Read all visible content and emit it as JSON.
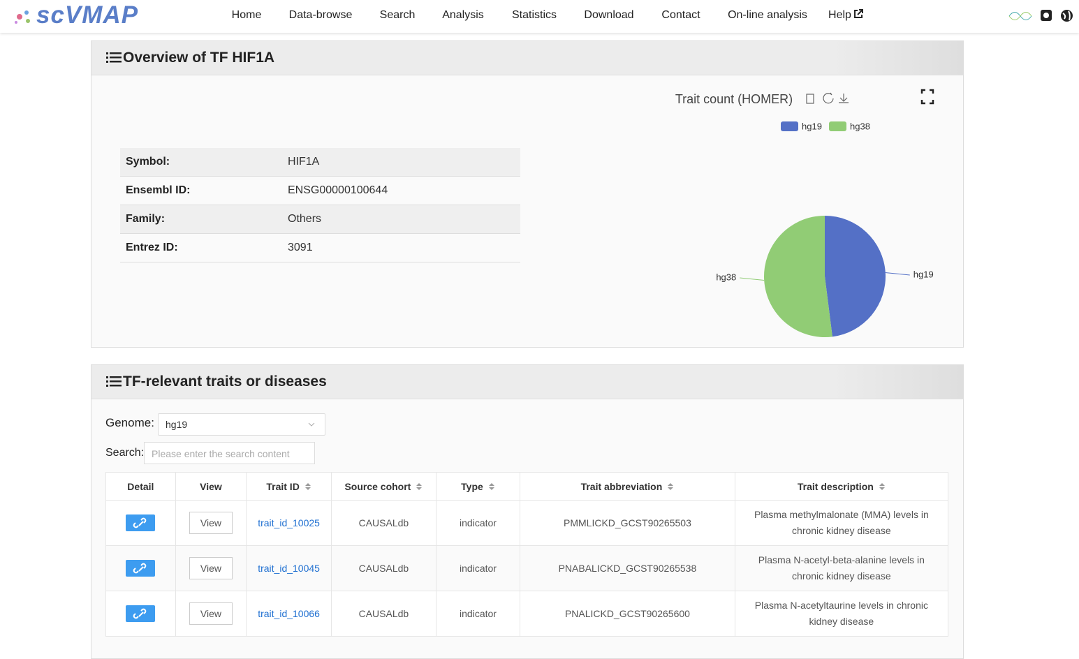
{
  "header": {
    "logo": "scVMAP",
    "nav": [
      "Home",
      "Data-browse",
      "Search",
      "Analysis",
      "Statistics",
      "Download",
      "Contact",
      "On-line analysis",
      "Help"
    ]
  },
  "overview": {
    "title": "Overview of TF HIF1A",
    "info": [
      [
        "Symbol:",
        "HIF1A"
      ],
      [
        "Ensembl ID:",
        "ENSG00000100644"
      ],
      [
        "Family:",
        "Others"
      ],
      [
        "Entrez ID:",
        "3091"
      ]
    ]
  },
  "chart_data": {
    "type": "pie",
    "title": "Trait count (HOMER)",
    "categories": [
      "hg19",
      "hg38"
    ],
    "values": [
      48,
      52
    ],
    "colors": [
      "#5470c6",
      "#91cc75"
    ],
    "legend": "top"
  },
  "traits": {
    "title": "TF-relevant traits or diseases",
    "genome_label": "Genome:",
    "genome_value": "hg19",
    "search_label": "Search:",
    "search_placeholder": "Please enter the search content",
    "columns": [
      "Detail",
      "View",
      "Trait ID",
      "Source cohort",
      "Type",
      "Trait abbreviation",
      "Trait description"
    ],
    "rows": [
      [
        "View",
        "trait_id_10025",
        "CAUSALdb",
        "indicator",
        "PMMLICKD_GCST90265503",
        "Plasma methylmalonate (MMA) levels in chronic kidney disease"
      ],
      [
        "View",
        "trait_id_10045",
        "CAUSALdb",
        "indicator",
        "PNABALICKD_GCST90265538",
        "Plasma N-acetyl-beta-alanine levels in chronic kidney disease"
      ],
      [
        "View",
        "trait_id_10066",
        "CAUSALdb",
        "indicator",
        "PNALICKD_GCST90265600",
        "Plasma N-acetyltaurine levels in chronic kidney disease"
      ]
    ]
  }
}
